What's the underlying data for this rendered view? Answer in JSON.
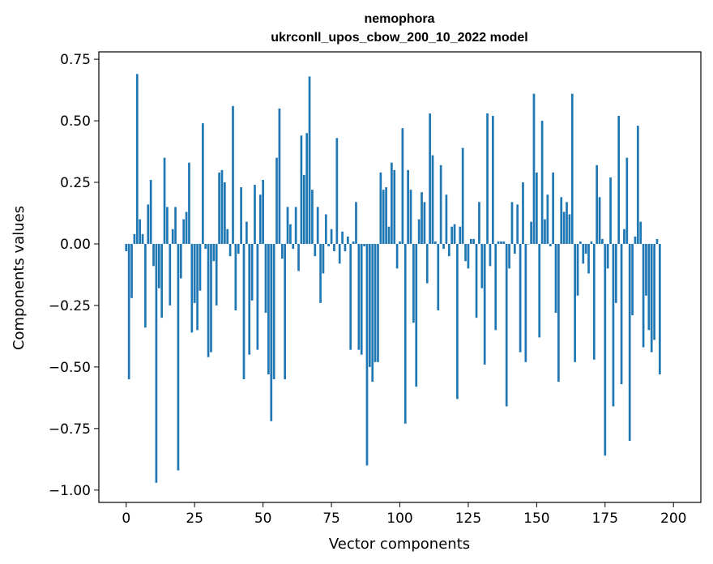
{
  "chart_data": {
    "type": "bar",
    "title": "nemophora",
    "subtitle": "ukrconll_upos_cbow_200_10_2022 model",
    "xlabel": "Vector components",
    "ylabel": "Components values",
    "xlim": [
      -10,
      210
    ],
    "ylim": [
      -1.05,
      0.78
    ],
    "x_ticks": [
      0,
      25,
      50,
      75,
      100,
      125,
      150,
      175,
      200
    ],
    "y_ticks": [
      -1.0,
      -0.75,
      -0.5,
      -0.25,
      0.0,
      0.25,
      0.5,
      0.75
    ],
    "y_tick_labels": [
      "−1.00",
      "−0.75",
      "−0.50",
      "−0.25",
      "0.00",
      "0.25",
      "0.50",
      "0.75"
    ],
    "bar_color": "#1f77b4",
    "grid": false,
    "values": [
      -0.03,
      -0.55,
      -0.22,
      0.04,
      0.69,
      0.1,
      0.04,
      -0.34,
      0.16,
      0.26,
      -0.09,
      -0.97,
      -0.18,
      -0.3,
      0.35,
      0.15,
      -0.25,
      0.06,
      0.15,
      -0.92,
      -0.14,
      0.1,
      0.13,
      0.33,
      -0.36,
      -0.24,
      -0.35,
      -0.19,
      0.49,
      -0.02,
      -0.46,
      -0.44,
      -0.07,
      -0.25,
      0.29,
      0.3,
      0.25,
      0.06,
      -0.05,
      0.56,
      -0.27,
      -0.04,
      0.23,
      -0.55,
      0.09,
      -0.45,
      -0.23,
      0.24,
      -0.43,
      0.2,
      0.26,
      -0.28,
      -0.53,
      -0.72,
      -0.55,
      0.35,
      0.55,
      -0.06,
      -0.55,
      0.15,
      0.08,
      -0.02,
      0.15,
      -0.11,
      0.44,
      0.28,
      0.45,
      0.68,
      0.22,
      -0.05,
      0.15,
      -0.24,
      -0.12,
      0.12,
      -0.01,
      0.06,
      -0.03,
      0.43,
      -0.08,
      0.05,
      -0.03,
      0.03,
      -0.43,
      0.01,
      0.17,
      -0.43,
      -0.45,
      -0.01,
      -0.9,
      -0.5,
      -0.56,
      -0.48,
      -0.48,
      0.29,
      0.22,
      0.23,
      0.07,
      0.33,
      0.3,
      -0.1,
      0.01,
      0.47,
      -0.73,
      0.3,
      0.22,
      -0.32,
      -0.58,
      0.1,
      0.21,
      0.17,
      -0.16,
      0.53,
      0.36,
      0.01,
      -0.27,
      0.32,
      -0.02,
      0.2,
      -0.05,
      0.07,
      0.08,
      -0.63,
      0.07,
      0.39,
      -0.07,
      -0.1,
      0.02,
      0.02,
      -0.3,
      0.17,
      -0.18,
      -0.49,
      0.53,
      -0.09,
      0.52,
      -0.35,
      0.01,
      0.01,
      0.01,
      -0.66,
      -0.1,
      0.17,
      -0.04,
      0.16,
      -0.44,
      0.25,
      -0.48,
      0.0,
      0.09,
      0.61,
      0.29,
      -0.38,
      0.5,
      0.1,
      0.2,
      -0.01,
      0.29,
      -0.28,
      -0.56,
      0.19,
      0.13,
      0.17,
      0.12,
      0.61,
      -0.48,
      -0.21,
      0.01,
      -0.08,
      -0.04,
      -0.12,
      0.01,
      -0.47,
      0.32,
      0.19,
      0.02,
      -0.86,
      -0.1,
      0.27,
      -0.66,
      -0.24,
      0.52,
      -0.57,
      0.06,
      0.35,
      -0.8,
      -0.29,
      0.03,
      0.48,
      0.09,
      -0.42,
      -0.21,
      -0.35,
      -0.44,
      -0.39,
      0.02,
      -0.53
    ]
  }
}
